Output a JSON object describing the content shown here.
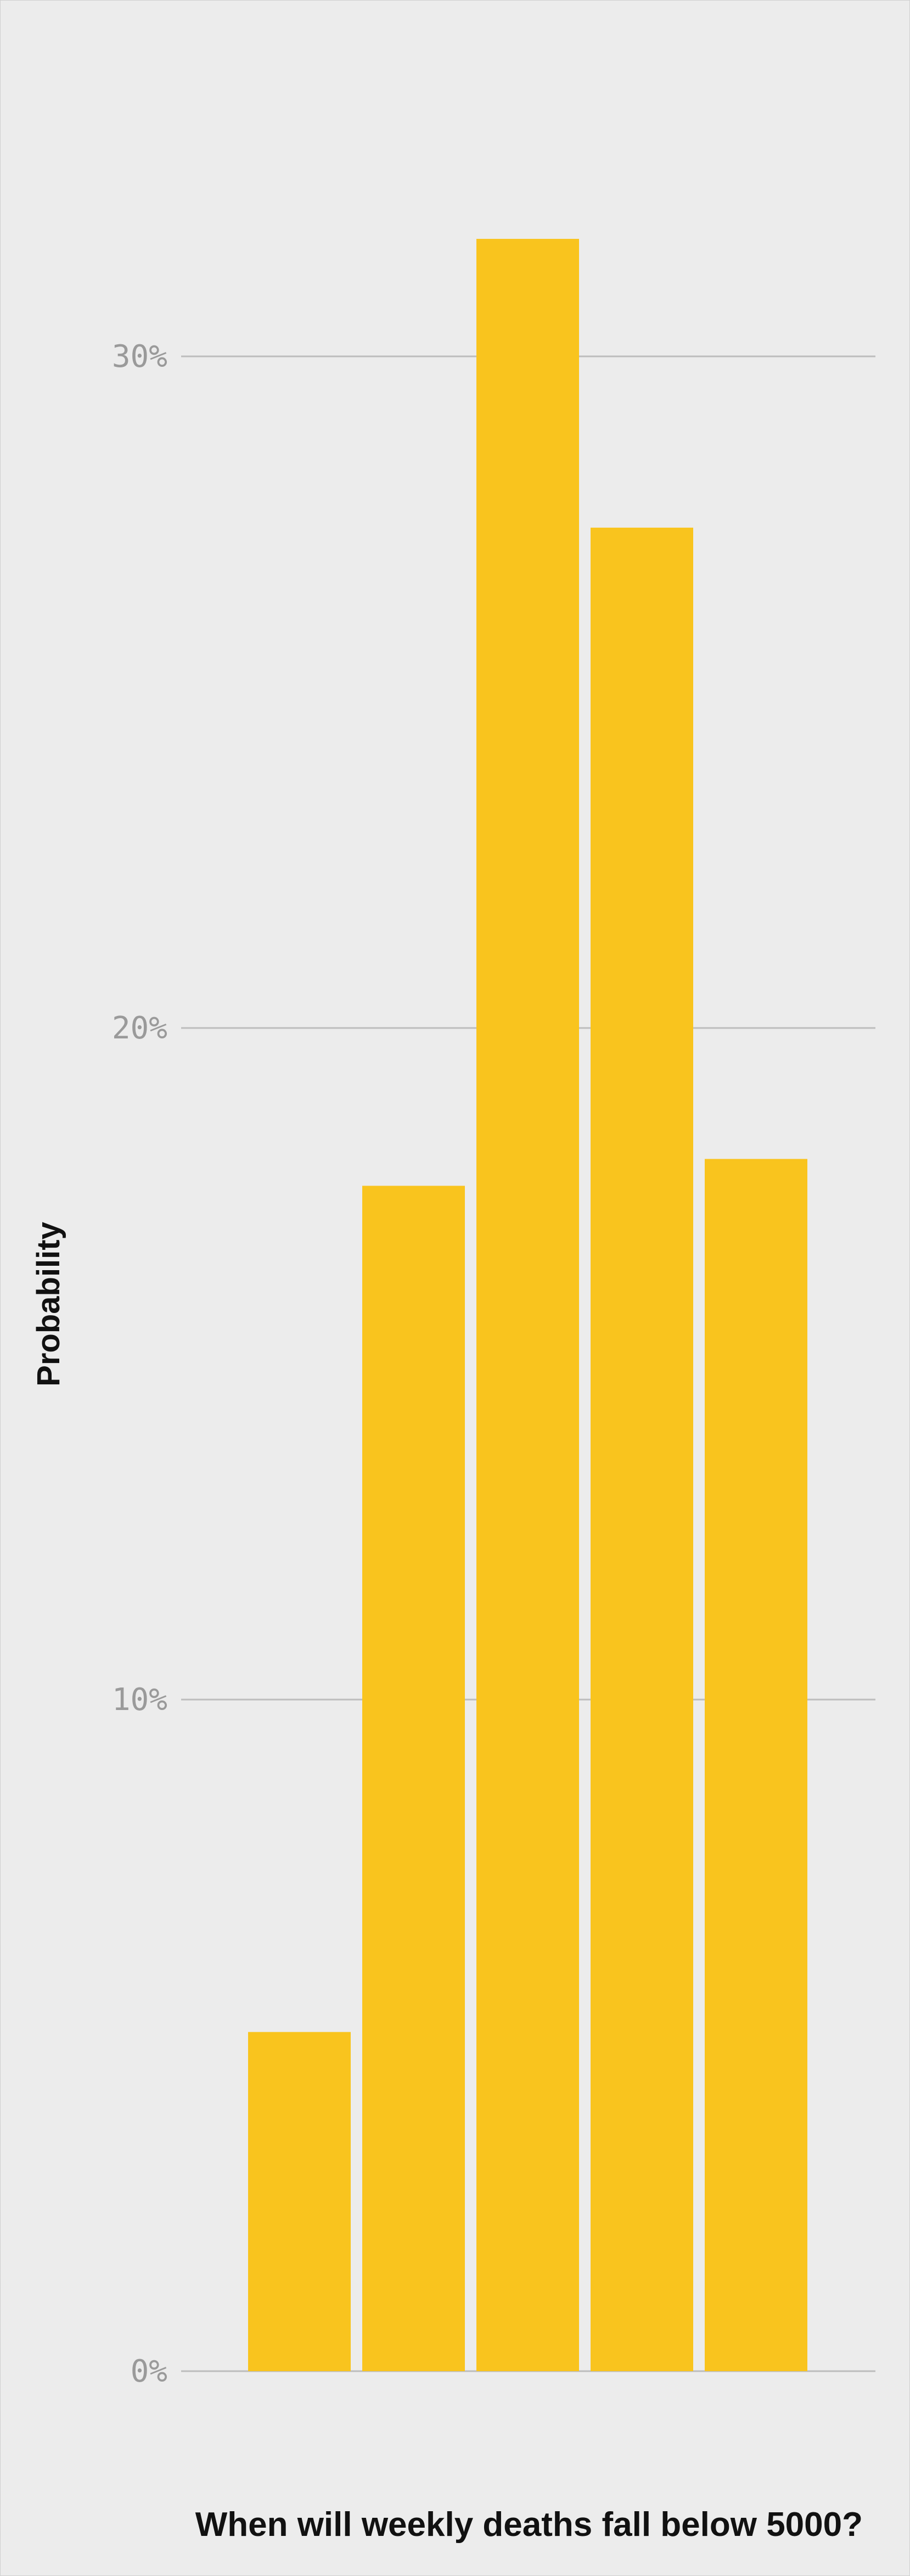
{
  "chart_data": {
    "type": "bar",
    "title": "",
    "xlabel": "When will weekly deaths fall below 5000?",
    "ylabel": "Probability",
    "categories": [
      "",
      "",
      "",
      "",
      ""
    ],
    "values": [
      5.05,
      17.65,
      31.75,
      27.45,
      18.05
    ],
    "ylim": [
      0,
      35.3
    ],
    "y_ticks": [
      0,
      10,
      20,
      30
    ],
    "y_tick_labels": [
      "0%",
      "10%",
      "20%",
      "30%"
    ],
    "grid": true,
    "legend": "none",
    "colors": {
      "bar": "#f9c41e",
      "grid": "#bdbdbd",
      "background": "#ececec",
      "tick_text": "#9a9a9a",
      "title_text": "#111111"
    }
  }
}
